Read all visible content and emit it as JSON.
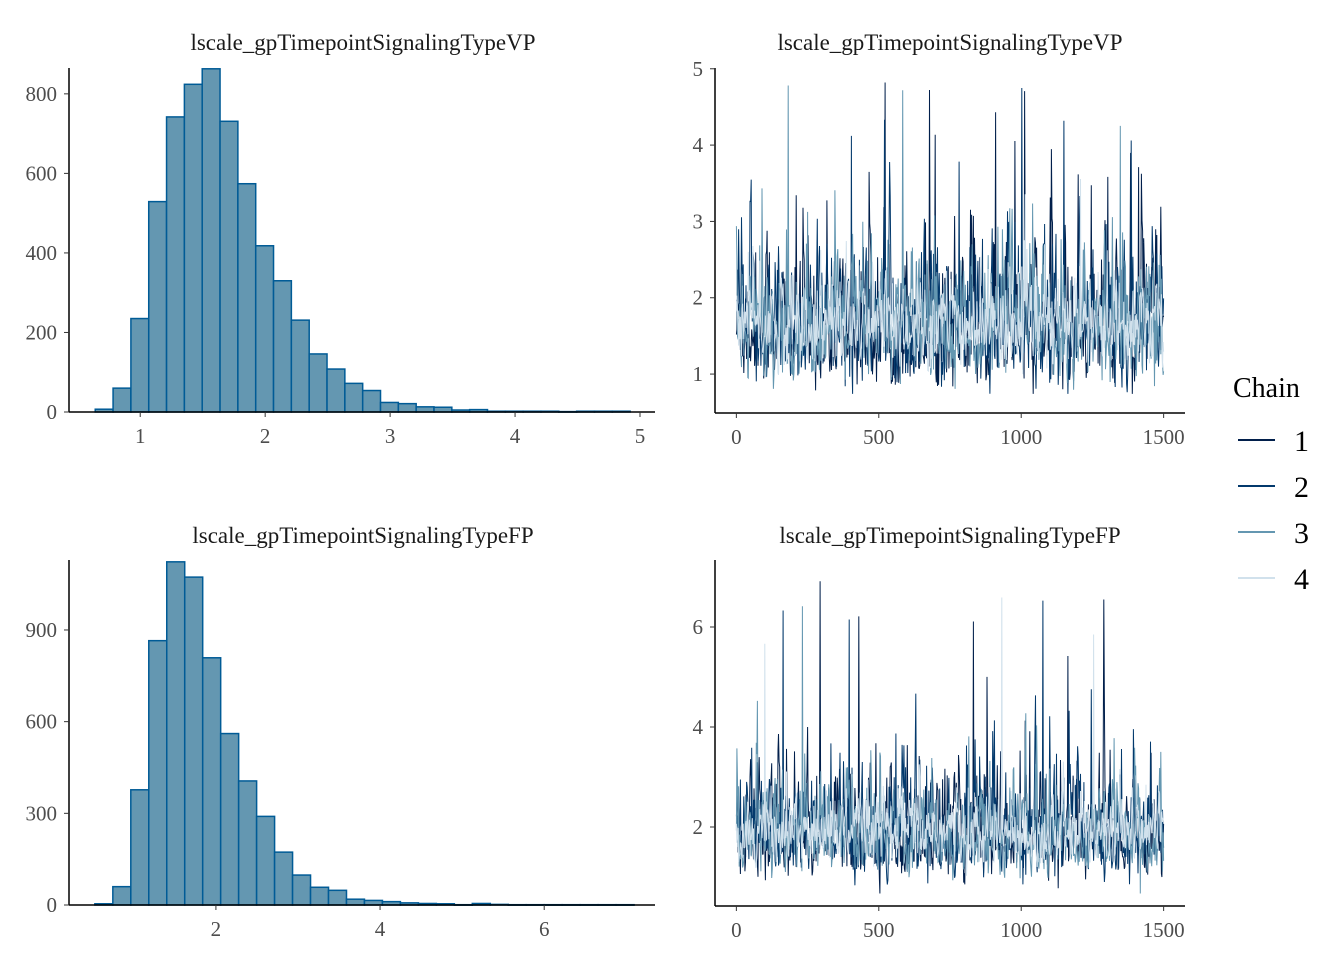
{
  "colors": {
    "hist_fill": "#6497b1",
    "hist_outline": "#005b96",
    "chains": [
      "#011f4b",
      "#03396c",
      "#6497b1",
      "#d1e1ec"
    ],
    "axis": "#000000"
  },
  "legend": {
    "title": "Chain",
    "placement": "right",
    "labels": [
      "1",
      "2",
      "3",
      "4"
    ]
  },
  "chart_data": [
    {
      "type": "bar",
      "subtype": "histogram",
      "title": "lscale_gpTimepointSignalingTypeVP",
      "xlim": [
        0.43,
        5.12
      ],
      "ylim": [
        0,
        865
      ],
      "xticks": [
        1,
        2,
        3,
        4,
        5
      ],
      "yticks": [
        0,
        200,
        400,
        600,
        800
      ],
      "bin_start": 0.64,
      "bin_width": 0.1427,
      "counts": [
        7,
        60,
        235,
        529,
        742,
        824,
        863,
        731,
        574,
        418,
        330,
        231,
        146,
        108,
        72,
        54,
        24,
        21,
        13,
        12,
        5,
        6,
        2,
        2,
        2,
        2,
        1,
        2,
        2,
        2
      ]
    },
    {
      "type": "line",
      "subtype": "trace",
      "title": "lscale_gpTimepointSignalingTypeVP",
      "xlim": [
        -75,
        1575
      ],
      "ylim": [
        0.49,
        5.01
      ],
      "xticks": [
        0,
        500,
        1000,
        1500
      ],
      "yticks": [
        1,
        2,
        3,
        4,
        5
      ],
      "iterations": 1500,
      "chains": [
        "1",
        "2",
        "3",
        "4"
      ],
      "center": 1.65,
      "max": 4.82
    },
    {
      "type": "bar",
      "subtype": "histogram",
      "title": "lscale_gpTimepointSignalingTypeFP",
      "xlim": [
        0.21,
        7.35
      ],
      "ylim": [
        0,
        1129
      ],
      "xticks": [
        2,
        4,
        6
      ],
      "yticks": [
        0,
        300,
        600,
        900
      ],
      "bin_start": 0.525,
      "bin_width": 0.219,
      "counts": [
        4,
        60,
        377,
        865,
        1123,
        1073,
        809,
        561,
        406,
        290,
        173,
        98,
        58,
        48,
        19,
        15,
        11,
        7,
        5,
        4,
        1,
        5,
        2,
        1,
        1,
        1,
        1,
        1,
        1,
        1
      ]
    },
    {
      "type": "line",
      "subtype": "trace",
      "title": "lscale_gpTimepointSignalingTypeFP",
      "xlim": [
        -75,
        1575
      ],
      "ylim": [
        0.42,
        7.34
      ],
      "xticks": [
        0,
        500,
        1000,
        1500
      ],
      "yticks": [
        2,
        4,
        6
      ],
      "iterations": 1500,
      "chains": [
        "1",
        "2",
        "3",
        "4"
      ],
      "center": 1.9,
      "max": 7.0
    }
  ]
}
